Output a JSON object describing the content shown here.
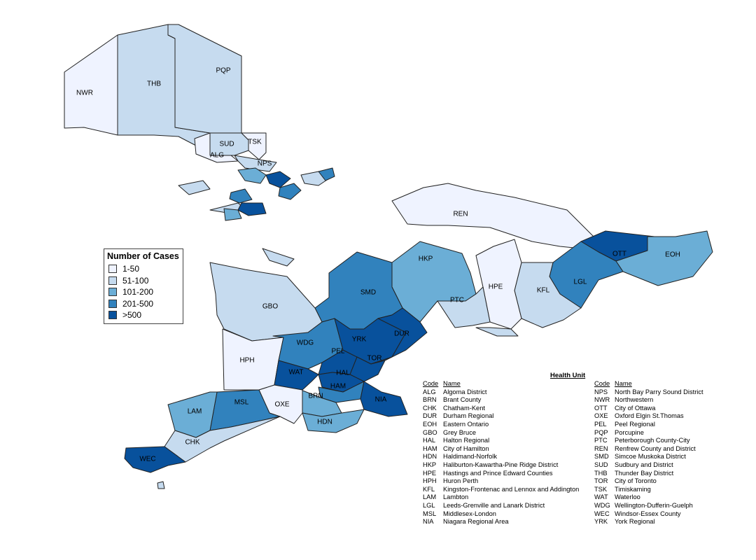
{
  "legend": {
    "title": "Number of Cases",
    "items": [
      {
        "label": "1-50",
        "color": "#eff3ff"
      },
      {
        "label": "51-100",
        "color": "#c6dbef"
      },
      {
        "label": "101-200",
        "color": "#6baed6"
      },
      {
        "label": "201-500",
        "color": "#3182bd"
      },
      {
        "label": ">500",
        "color": "#08519c"
      }
    ]
  },
  "table": {
    "title": "Health Unit",
    "code_header": "Code",
    "name_header": "Name",
    "left": [
      [
        "ALG",
        "Algoma District"
      ],
      [
        "BRN",
        "Brant County"
      ],
      [
        "CHK",
        "Chatham-Kent"
      ],
      [
        "DUR",
        "Durham Regional"
      ],
      [
        "EOH",
        "Eastern Ontario"
      ],
      [
        "GBO",
        "Grey Bruce"
      ],
      [
        "HAL",
        "Halton Regional"
      ],
      [
        "HAM",
        "City of Hamilton"
      ],
      [
        "HDN",
        "Haldimand-Norfolk"
      ],
      [
        "HKP",
        "Haliburton-Kawartha-Pine Ridge District"
      ],
      [
        "HPE",
        "Hastings and Prince Edward Counties"
      ],
      [
        "HPH",
        "Huron Perth"
      ],
      [
        "KFL",
        "Kingston-Frontenac and Lennox and Addington"
      ],
      [
        "LAM",
        "Lambton"
      ],
      [
        "LGL",
        "Leeds-Grenville and Lanark District"
      ],
      [
        "MSL",
        "Middlesex-London"
      ],
      [
        "NIA",
        "Niagara Regional Area"
      ]
    ],
    "right": [
      [
        "NPS",
        "North Bay Parry Sound District"
      ],
      [
        "NWR",
        "Northwestern"
      ],
      [
        "OTT",
        "City of Ottawa"
      ],
      [
        "OXE",
        "Oxford Elgin St.Thomas"
      ],
      [
        "PEL",
        "Peel Regional"
      ],
      [
        "PQP",
        "Porcupine"
      ],
      [
        "PTC",
        "Peterborough County-City"
      ],
      [
        "REN",
        "Renfrew County and District"
      ],
      [
        "SMD",
        "Simcoe Muskoka District"
      ],
      [
        "SUD",
        "Sudbury and District"
      ],
      [
        "THB",
        "Thunder Bay District"
      ],
      [
        "TOR",
        "City of Toronto"
      ],
      [
        "TSK",
        "Timiskaming"
      ],
      [
        "WAT",
        "Waterloo"
      ],
      [
        "WDG",
        "Wellington-Dufferin-Guelph"
      ],
      [
        "WEC",
        "Windsor-Essex County"
      ],
      [
        "YRK",
        "York Regional"
      ]
    ]
  },
  "regions": [
    {
      "code": "NWR",
      "cls": 1,
      "label": "NWR"
    },
    {
      "code": "THB",
      "cls": 2,
      "label": "THB"
    },
    {
      "code": "PQP",
      "cls": 2,
      "label": "PQP"
    },
    {
      "code": "SUD",
      "cls": 2,
      "label": "SUD"
    },
    {
      "code": "TSK",
      "cls": 1,
      "label": "TSK"
    },
    {
      "code": "ALG",
      "cls": 1,
      "label": "ALG"
    },
    {
      "code": "NPS",
      "cls": 2,
      "label": "NPS"
    },
    {
      "code": "REN",
      "cls": 1,
      "label": "REN"
    },
    {
      "code": "OTT",
      "cls": 5,
      "label": "OTT"
    },
    {
      "code": "EOH",
      "cls": 3,
      "label": "EOH"
    },
    {
      "code": "LGL",
      "cls": 4,
      "label": "LGL"
    },
    {
      "code": "KFL",
      "cls": 2,
      "label": "KFL"
    },
    {
      "code": "HPE",
      "cls": 1,
      "label": "HPE"
    },
    {
      "code": "HKP",
      "cls": 3,
      "label": "HKP"
    },
    {
      "code": "PTC",
      "cls": 2,
      "label": "PTC"
    },
    {
      "code": "SMD",
      "cls": 4,
      "label": "SMD"
    },
    {
      "code": "GBO",
      "cls": 2,
      "label": "GBO"
    },
    {
      "code": "HPH",
      "cls": 1,
      "label": "HPH"
    },
    {
      "code": "WDG",
      "cls": 4,
      "label": "WDG"
    },
    {
      "code": "WAT",
      "cls": 5,
      "label": "WAT"
    },
    {
      "code": "PEL",
      "cls": 5,
      "label": "PEL"
    },
    {
      "code": "YRK",
      "cls": 5,
      "label": "YRK"
    },
    {
      "code": "DUR",
      "cls": 5,
      "label": "DUR"
    },
    {
      "code": "TOR",
      "cls": 5,
      "label": "TOR"
    },
    {
      "code": "HAL",
      "cls": 5,
      "label": "HAL"
    },
    {
      "code": "HAM",
      "cls": 4,
      "label": "HAM"
    },
    {
      "code": "NIA",
      "cls": 5,
      "label": "NIA"
    },
    {
      "code": "BRN",
      "cls": 3,
      "label": "BRN"
    },
    {
      "code": "HDN",
      "cls": 3,
      "label": "HDN"
    },
    {
      "code": "OXE",
      "cls": 1,
      "label": "OXE"
    },
    {
      "code": "MSL",
      "cls": 4,
      "label": "MSL"
    },
    {
      "code": "LAM",
      "cls": 3,
      "label": "LAM"
    },
    {
      "code": "CHK",
      "cls": 2,
      "label": "CHK"
    },
    {
      "code": "WEC",
      "cls": 5,
      "label": "WEC"
    }
  ]
}
